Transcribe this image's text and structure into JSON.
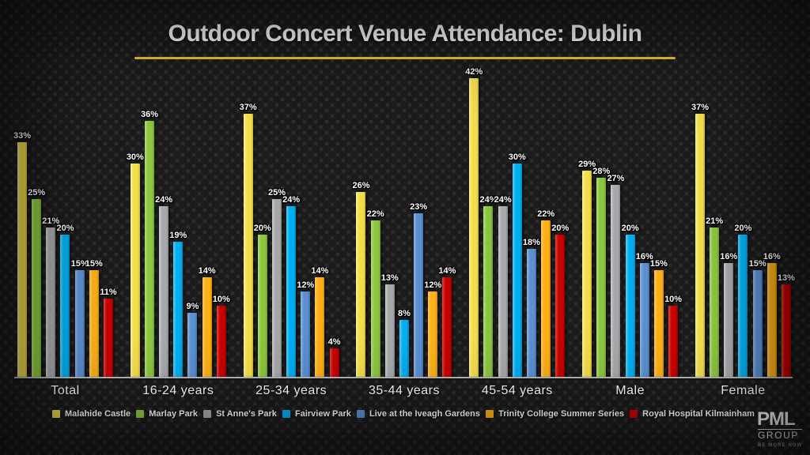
{
  "title": "Outdoor Concert Venue Attendance: Dublin",
  "accent_underline_color": "#e6c72f",
  "chart_data": {
    "type": "bar",
    "title": "Outdoor Concert Venue Attendance: Dublin",
    "categories": [
      "Total",
      "16-24 years",
      "25-34 years",
      "35-44 years",
      "45-54 years",
      "Male",
      "Female"
    ],
    "series": [
      {
        "name": "Malahide Castle",
        "color": "#f2de4a",
        "color_light": "#f9f0a0",
        "color_dark": "#cdb62e",
        "values": [
          33,
          30,
          37,
          26,
          42,
          29,
          37
        ]
      },
      {
        "name": "Marlay Park",
        "color": "#8cc63f",
        "color_light": "#b6dc7e",
        "color_dark": "#6d9e2c",
        "values": [
          25,
          36,
          20,
          22,
          24,
          28,
          21
        ]
      },
      {
        "name": "St Anne's Park",
        "color": "#a6a8ab",
        "color_light": "#cbcdcf",
        "color_dark": "#838587",
        "values": [
          21,
          24,
          25,
          13,
          24,
          27,
          16
        ]
      },
      {
        "name": "Fairview Park",
        "color": "#00aeef",
        "color_light": "#5ecdf6",
        "color_dark": "#0086bd",
        "values": [
          20,
          19,
          24,
          8,
          30,
          20,
          20
        ]
      },
      {
        "name": "Live at the Iveagh Gardens",
        "color": "#5b8fd0",
        "color_light": "#8fb3e0",
        "color_dark": "#4170ad",
        "values": [
          15,
          9,
          12,
          23,
          18,
          16,
          15
        ]
      },
      {
        "name": "Trinity College Summer Series",
        "color": "#fcaf17",
        "color_light": "#fdc95e",
        "color_dark": "#d18c05",
        "values": [
          15,
          14,
          14,
          12,
          22,
          15,
          16
        ]
      },
      {
        "name": "Royal Hospital Kilmainham",
        "color": "#c80000",
        "color_light": "#e04a3a",
        "color_dark": "#930000",
        "values": [
          11,
          10,
          4,
          14,
          20,
          10,
          13
        ]
      }
    ],
    "value_suffix": "%",
    "ylim": [
      0,
      45
    ],
    "grid": false,
    "legend_position": "bottom"
  },
  "logo": {
    "name": "PML",
    "sub": "GROUP",
    "tagline": "BE MORE NOW"
  }
}
